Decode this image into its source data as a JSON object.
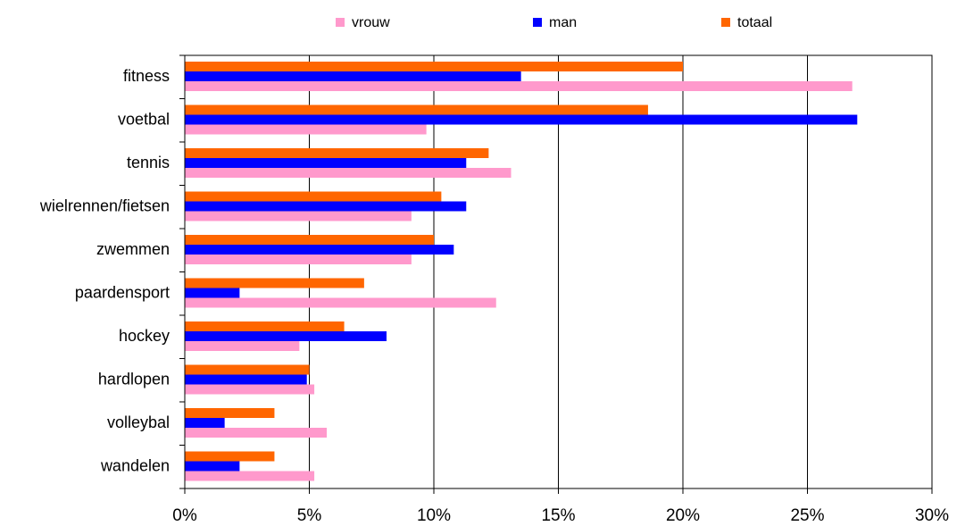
{
  "chart_data": {
    "type": "hbar",
    "categories": [
      "fitness",
      "voetbal",
      "tennis",
      "wielrennen/fietsen",
      "zwemmen",
      "paardensport",
      "hockey",
      "hardlopen",
      "volleybal",
      "wandelen"
    ],
    "series": [
      {
        "name": "vrouw",
        "color": "#ff99cc",
        "values": [
          26.8,
          9.7,
          13.1,
          9.1,
          9.1,
          12.5,
          4.6,
          5.2,
          5.7,
          5.2
        ]
      },
      {
        "name": "man",
        "color": "#0000ff",
        "values": [
          13.5,
          27.0,
          11.3,
          11.3,
          10.8,
          2.2,
          8.1,
          4.9,
          1.6,
          2.2
        ]
      },
      {
        "name": "totaal",
        "color": "#ff6600",
        "values": [
          20.0,
          18.6,
          12.2,
          10.3,
          10.0,
          7.2,
          6.4,
          5.0,
          3.6,
          3.6
        ]
      }
    ],
    "xlim": [
      0,
      30
    ],
    "xticks": [
      {
        "value": 0,
        "label": "0%"
      },
      {
        "value": 5,
        "label": "5%"
      },
      {
        "value": 10,
        "label": "10%"
      },
      {
        "value": 15,
        "label": "15%"
      },
      {
        "value": 20,
        "label": "20%"
      },
      {
        "value": 25,
        "label": "25%"
      },
      {
        "value": 30,
        "label": "30%"
      }
    ],
    "grid": true,
    "legend": "top"
  }
}
